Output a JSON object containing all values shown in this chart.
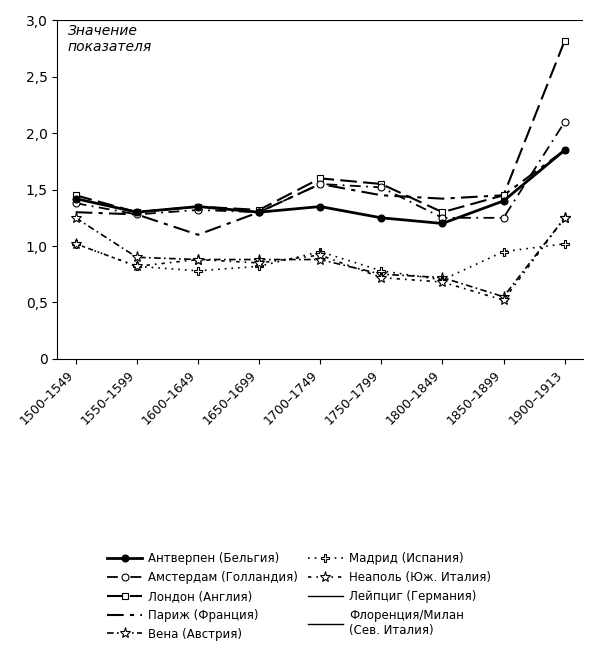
{
  "x_labels": [
    "1500–1549",
    "1550–1599",
    "1600–1649",
    "1650–1699",
    "1700–1749",
    "1750–1799",
    "1800–1849",
    "1850–1899",
    "1900–1913"
  ],
  "x_positions": [
    0,
    1,
    2,
    3,
    4,
    5,
    6,
    7,
    8
  ],
  "ylabel": "Значение\nпоказателя",
  "ylim": [
    0,
    3.0
  ],
  "yticks": [
    0,
    0.5,
    1.0,
    1.5,
    2.0,
    2.5,
    3.0
  ],
  "ytick_labels": [
    "0",
    "0,5",
    "1,0",
    "1,5",
    "2,0",
    "2,5",
    "3,0"
  ],
  "series": [
    {
      "name": "Антверпен (Бельгия)",
      "values": [
        1.42,
        1.3,
        1.35,
        1.3,
        1.35,
        1.25,
        1.2,
        1.4,
        1.85
      ],
      "color": "#000000",
      "linestyle": "-",
      "marker": "o",
      "markerfacecolor": "#000000",
      "markersize": 6,
      "linewidth": 1.8,
      "dashes": null
    },
    {
      "name": "Амстердам (Голландия)",
      "values": [
        1.38,
        1.28,
        1.32,
        1.3,
        1.55,
        1.52,
        1.25,
        1.25,
        2.1
      ],
      "color": "#000000",
      "linestyle": "--",
      "marker": "o",
      "markerfacecolor": "#ffffff",
      "markersize": 6,
      "linewidth": 1.2,
      "dashes": [
        6,
        3,
        1,
        3
      ]
    },
    {
      "name": "Лондон (Англия)",
      "values": [
        1.45,
        1.3,
        1.35,
        1.32,
        1.6,
        1.55,
        1.3,
        1.45,
        2.82
      ],
      "color": "#000000",
      "linestyle": "--",
      "marker": "s",
      "markerfacecolor": "#ffffff",
      "markersize": 6,
      "linewidth": 1.5,
      "dashes": [
        8,
        3
      ]
    },
    {
      "name": "Париж (Франция)",
      "values": [
        1.3,
        1.28,
        1.1,
        1.3,
        1.55,
        1.45,
        1.42,
        1.45,
        1.85
      ],
      "color": "#000000",
      "linestyle": "-.",
      "marker": null,
      "markerfacecolor": null,
      "markersize": 0,
      "linewidth": 1.5,
      "dashes": [
        8,
        3,
        2,
        3
      ]
    },
    {
      "name": "Вена (Австрия)",
      "values": [
        1.25,
        0.9,
        0.88,
        0.88,
        0.88,
        0.75,
        0.72,
        0.55,
        1.25
      ],
      "color": "#000000",
      "linestyle": "--",
      "marker": "*",
      "markerfacecolor": "#ffffff",
      "markersize": 8,
      "linewidth": 1.2,
      "dashes": [
        4,
        3,
        1,
        3
      ]
    },
    {
      "name": "Мадрид (Испания)",
      "values": [
        1.02,
        0.82,
        0.78,
        0.82,
        0.95,
        0.78,
        0.7,
        0.95,
        1.02
      ],
      "color": "#000000",
      "linestyle": ":",
      "marker": "+",
      "markerfacecolor": "#ffffff",
      "markersize": 8,
      "linewidth": 1.2,
      "dashes": [
        1,
        3
      ]
    },
    {
      "name": "Неаполь (Юж. Италия)",
      "values": [
        1.02,
        0.82,
        0.88,
        0.85,
        0.92,
        0.72,
        0.68,
        0.52,
        1.25
      ],
      "color": "#000000",
      "linestyle": ":",
      "marker": "*",
      "markerfacecolor": "#ffffff",
      "markersize": 8,
      "linewidth": 1.2,
      "dashes": [
        2,
        3,
        1,
        3
      ]
    },
    {
      "name": "Лейпциг (Германия)",
      "values": [
        null,
        null,
        null,
        null,
        null,
        null,
        null,
        null,
        null
      ],
      "color": "#000000",
      "linestyle": "-",
      "marker": null,
      "markerfacecolor": null,
      "markersize": 0,
      "linewidth": 1.0,
      "dashes": null
    },
    {
      "name": "Флоренция/Милан (Сев. Италия)",
      "values": [
        null,
        null,
        null,
        null,
        null,
        null,
        null,
        null,
        null
      ],
      "color": "#000000",
      "linestyle": "-",
      "marker": null,
      "markerfacecolor": null,
      "markersize": 0,
      "linewidth": 1.0,
      "dashes": null
    }
  ],
  "legend_items": [
    {
      "label": "Антверпен (Бельгия)",
      "linestyle": "-",
      "marker": "o",
      "markerfacecolor": "#000000",
      "dashes": null,
      "linewidth": 1.8
    },
    {
      "label": "Амстердам (Голландия)",
      "linestyle": "--",
      "marker": "o",
      "markerfacecolor": "#ffffff",
      "dashes": [
        6,
        3,
        1,
        3
      ],
      "linewidth": 1.2
    },
    {
      "label": "Лондон (Англия)",
      "linestyle": "--",
      "marker": "s",
      "markerfacecolor": "#ffffff",
      "dashes": [
        8,
        3
      ],
      "linewidth": 1.5
    },
    {
      "label": "Париж (Франция)",
      "linestyle": "-.",
      "marker": null,
      "markerfacecolor": null,
      "dashes": [
        8,
        3,
        2,
        3
      ],
      "linewidth": 1.5
    },
    {
      "label": "Вена (Австрия)",
      "linestyle": "--",
      "marker": "*",
      "markerfacecolor": "#ffffff",
      "dashes": [
        4,
        3,
        1,
        3
      ],
      "linewidth": 1.2
    },
    {
      "label": "Мадрид (Испания)",
      "linestyle": ":",
      "marker": "+",
      "markerfacecolor": "#ffffff",
      "dashes": [
        1,
        3
      ],
      "linewidth": 1.2
    },
    {
      "label": "Неаполь (Юж. Италия)",
      "linestyle": ":",
      "marker": "*",
      "markerfacecolor": "#ffffff",
      "dashes": [
        2,
        3,
        1,
        3
      ],
      "linewidth": 1.2
    },
    {
      "label": "Лейпциг (Германия)",
      "linestyle": "-",
      "marker": null,
      "markerfacecolor": null,
      "dashes": null,
      "linewidth": 1.0
    },
    {
      "label": "Флоренция/Милан\n(Сев. Италия)",
      "linestyle": "-",
      "marker": null,
      "markerfacecolor": null,
      "dashes": null,
      "linewidth": 1.0
    }
  ],
  "background_color": "#ffffff",
  "font_family": "DejaVu Sans"
}
